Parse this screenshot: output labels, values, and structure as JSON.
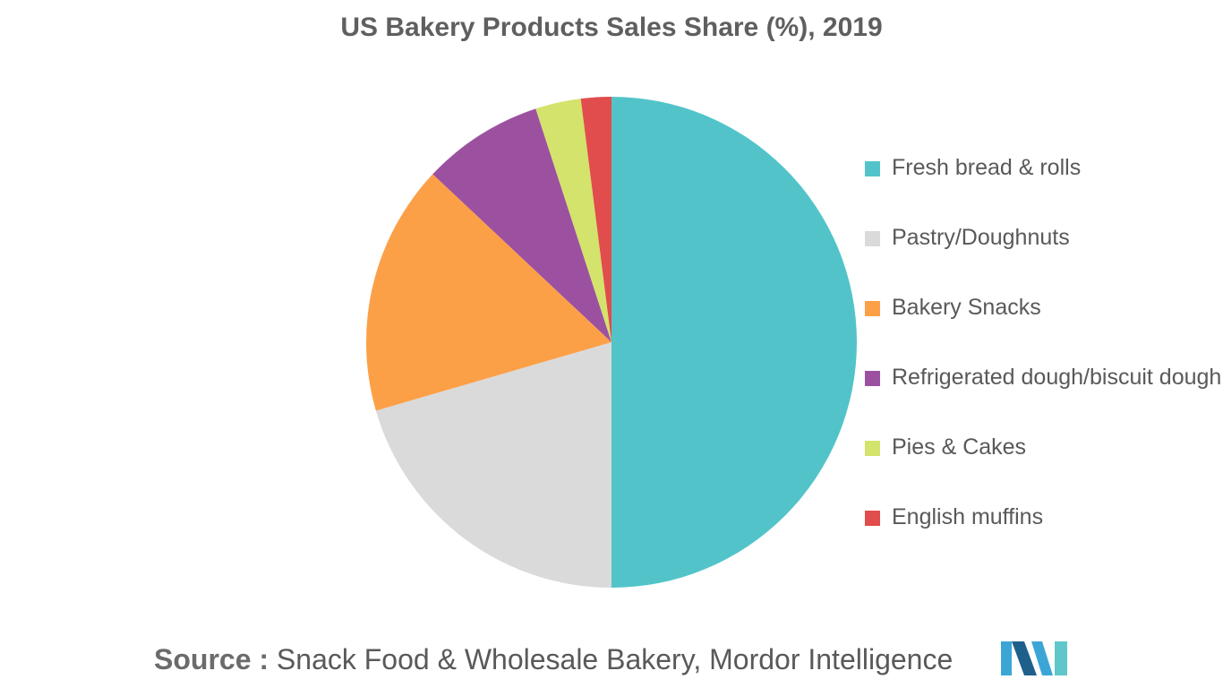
{
  "chart_data": {
    "type": "pie",
    "title": "US Bakery Products Sales Share (%), 2019",
    "categories": [
      "Fresh bread & rolls",
      "Pastry/Doughnuts",
      "Bakery Snacks",
      "Refrigerated dough/biscuit dough",
      "Pies & Cakes",
      "English muffins"
    ],
    "values": [
      50.0,
      20.5,
      16.5,
      8.0,
      3.0,
      2.0
    ],
    "colors": [
      "#52C4C9",
      "#DADADA",
      "#FCA048",
      "#9C51A0",
      "#D3E36B",
      "#E14C4C"
    ],
    "legend_position": "right"
  },
  "source": {
    "prefix": "Source :",
    "text": "Snack Food & Wholesale Bakery, Mordor Intelligence"
  },
  "logo": {
    "icon": "mordor-intelligence-logo",
    "colors": [
      "#3BA6D6",
      "#1F5F8B",
      "#5FC7C9"
    ]
  }
}
